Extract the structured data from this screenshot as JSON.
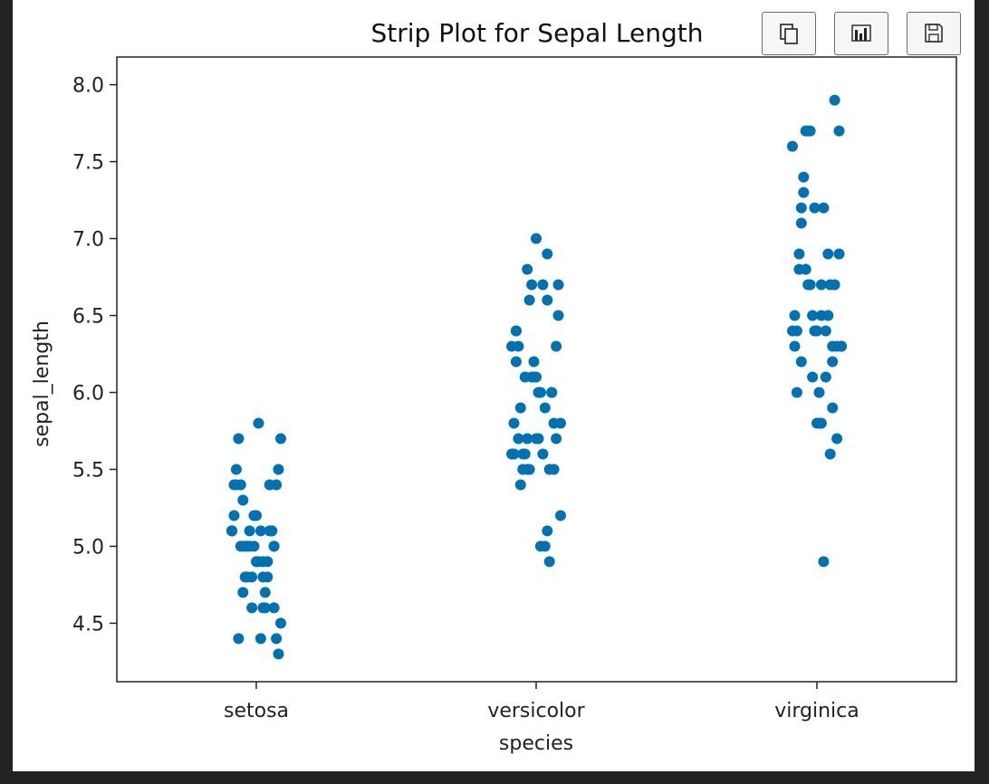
{
  "toolbar": {
    "buttons": [
      {
        "name": "copy-button",
        "icon": "copy-icon"
      },
      {
        "name": "chart-button",
        "icon": "bar-chart-icon"
      },
      {
        "name": "save-button",
        "icon": "floppy-disk-icon"
      }
    ]
  },
  "colors": {
    "point": "#0072b2",
    "axis": "#222222",
    "background": "#ffffff",
    "page": "#232323"
  },
  "chart_data": {
    "type": "scatter",
    "title": "Strip Plot for Sepal Length",
    "xlabel": "species",
    "ylabel": "sepal_length",
    "categories": [
      "setosa",
      "versicolor",
      "virginica"
    ],
    "ylim": [
      4.12,
      8.18
    ],
    "yticks": [
      "4.5",
      "5.0",
      "5.5",
      "6.0",
      "6.5",
      "7.0",
      "7.5",
      "8.0"
    ],
    "grid": false,
    "legend": "none",
    "series": [
      {
        "values": [
          5.1,
          4.9,
          4.7,
          4.6,
          5.0,
          5.4,
          4.6,
          5.0,
          4.4,
          4.9,
          5.4,
          4.8,
          4.8,
          4.3,
          5.8,
          5.7,
          5.4,
          5.1,
          5.7,
          5.1,
          5.4,
          5.1,
          4.6,
          5.1,
          4.8,
          5.0,
          5.0,
          5.2,
          5.2,
          4.7,
          4.8,
          5.4,
          5.2,
          5.5,
          4.9,
          5.0,
          5.5,
          4.9,
          4.4,
          5.1,
          5.0,
          4.5,
          4.4,
          5.0,
          5.1,
          4.8,
          5.1,
          4.6,
          5.3,
          5.0
        ]
      },
      {
        "values": [
          7.0,
          6.4,
          6.9,
          5.5,
          6.5,
          5.7,
          6.3,
          4.9,
          6.6,
          5.2,
          5.0,
          5.9,
          6.0,
          6.1,
          5.6,
          6.7,
          5.6,
          5.8,
          6.2,
          5.6,
          5.9,
          6.1,
          6.3,
          6.1,
          6.4,
          6.6,
          6.8,
          6.7,
          6.0,
          5.7,
          5.5,
          5.5,
          5.8,
          6.0,
          5.4,
          6.0,
          6.7,
          6.3,
          5.6,
          5.5,
          5.5,
          6.1,
          5.8,
          5.0,
          5.6,
          5.7,
          5.7,
          6.2,
          5.1,
          5.7
        ]
      },
      {
        "values": [
          6.3,
          5.8,
          7.1,
          6.3,
          6.5,
          7.6,
          4.9,
          7.3,
          6.7,
          7.2,
          6.5,
          6.4,
          6.8,
          5.7,
          5.8,
          6.4,
          6.5,
          7.7,
          7.7,
          6.0,
          6.9,
          5.6,
          7.7,
          6.3,
          6.7,
          7.2,
          6.2,
          6.1,
          6.4,
          7.2,
          7.4,
          7.9,
          6.4,
          6.3,
          6.1,
          7.7,
          6.3,
          6.4,
          6.0,
          6.9,
          6.7,
          6.9,
          5.8,
          6.8,
          6.7,
          6.7,
          6.3,
          6.5,
          6.2,
          5.9
        ]
      }
    ]
  }
}
